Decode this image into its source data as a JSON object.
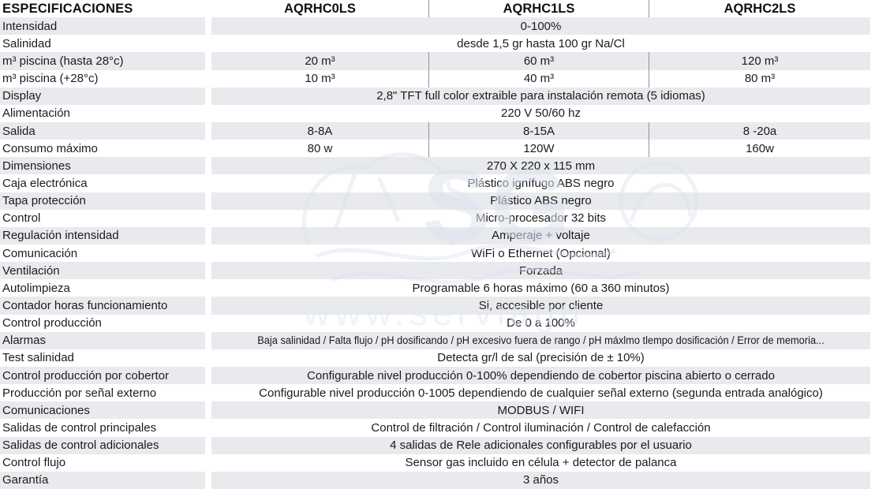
{
  "table": {
    "header": {
      "label": "ESPECIFICACIONES",
      "columns": [
        "AQRHC0LS",
        "AQRHC1LS",
        "AQRHC2LS"
      ]
    },
    "rows": [
      {
        "label": "Intensidad",
        "span": "0-100%"
      },
      {
        "label": "Salinidad",
        "span": "desde 1,5 gr hasta 100 gr Na/Cl"
      },
      {
        "label": "m³ piscina (hasta 28°c)",
        "cols": [
          "20 m³",
          "60 m³",
          "120 m³"
        ]
      },
      {
        "label": "m³ piscina (+28°c)",
        "cols": [
          "10 m³",
          "40 m³",
          "80 m³"
        ]
      },
      {
        "label": "Display",
        "span": "2,8\" TFT full color extraible para instalación remota (5 idiomas)"
      },
      {
        "label": "Alimentación",
        "span": "220 V 50/60 hz"
      },
      {
        "label": "Salida",
        "cols": [
          "8-8A",
          "8-15A",
          "8 -20a"
        ]
      },
      {
        "label": "Consumo máximo",
        "cols": [
          "80 w",
          "120W",
          "160w"
        ]
      },
      {
        "label": "Dimensiones",
        "span": "270 X 220 x 115 mm"
      },
      {
        "label": "Caja electrónica",
        "span": "Plástico ignífugo ABS negro"
      },
      {
        "label": "Tapa protección",
        "span": "Plástico ABS negro"
      },
      {
        "label": "Control",
        "span": "Micro-procesador 32 bits"
      },
      {
        "label": "Regulación intensidad",
        "span": "Amperaje + voltaje"
      },
      {
        "label": "Comunicación",
        "span": "WiFi o Ethernet (Opcional)"
      },
      {
        "label": "Ventilación",
        "span": "Forzada"
      },
      {
        "label": "Autolimpieza",
        "span": "Programable 6 horas máximo (60 a 360 minutos)"
      },
      {
        "label": "Contador horas funcionamiento",
        "span": "Si, accesible por cliente"
      },
      {
        "label": "Control producción",
        "span": "De 0 a 100%"
      },
      {
        "label": "Alarmas",
        "span": "Baja salinidad / Falta flujo / pH dosificando / pH excesivo fuera de rango / pH máxlmo tlempo dosificación / Error de memoria...",
        "small": true
      },
      {
        "label": "Test salinidad",
        "span": "Detecta gr/l de sal (precisión de ± 10%)"
      },
      {
        "label": "Control producción por cobertor",
        "span": "Configurable nivel producción 0-100% dependiendo de cobertor piscina abierto o cerrado"
      },
      {
        "label": "Producción por señal externo",
        "span": "Configurable nivel producción 0-1005 dependiendo de cualquier señal externo (segunda entrada analógico)"
      },
      {
        "label": "Comunicaciones",
        "span": "MODBUS / WIFI"
      },
      {
        "label": "Salidas de control principales",
        "span": "Control de filtración / Control iluminación / Control de calefacción"
      },
      {
        "label": "Salidas de control adicionales",
        "span": "4 salidas de Rele adicionales configurables por el usuario"
      },
      {
        "label": "Control flujo",
        "span": "Sensor gas incluido en célula + detector de palanca"
      },
      {
        "label": "Garantía",
        "span": "3 años"
      }
    ]
  },
  "watermark": {
    "big_text": "SG",
    "url_text": "www.serviagu"
  },
  "colors": {
    "stripe": "#e8eaee",
    "separator": "#8f9398",
    "text": "#1b1b1d",
    "watermark": "#d9e0ea"
  }
}
